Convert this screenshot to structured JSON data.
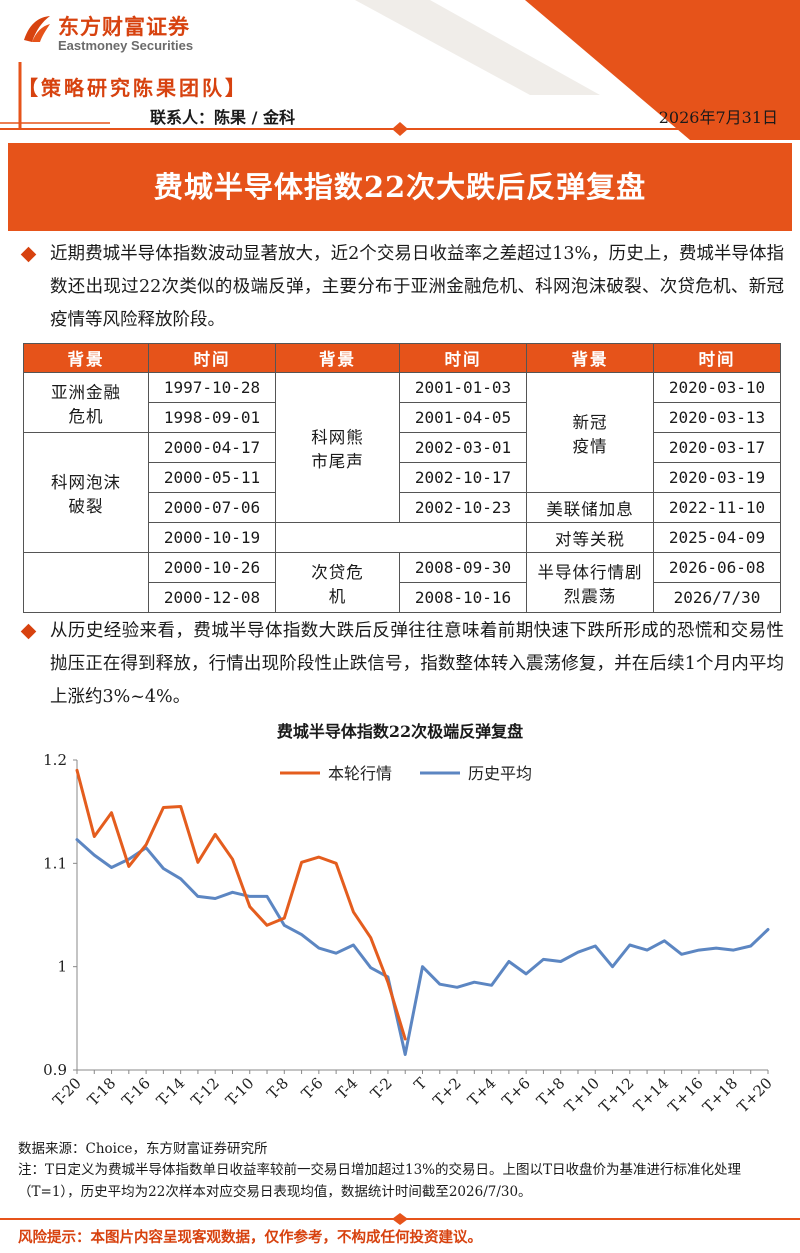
{
  "header": {
    "logo_cn": "东方财富证券",
    "logo_en": "Eastmoney Securities",
    "team": "【策略研究陈果团队】",
    "contact": "联系人：陈果 / 金科",
    "date": "2026年7月31日"
  },
  "title": "费城半导体指数22次大跌后反弹复盘",
  "para1": "近期费城半导体指数波动显著放大，近2个交易日收益率之差超过13%，历史上，费城半导体指数还出现过22次类似的极端反弹，主要分布于亚洲金融危机、科网泡沫破裂、次贷危机、新冠疫情等风险释放阶段。",
  "para2": "从历史经验来看，费城半导体指数大跌后反弹往往意味着前期快速下跌所形成的恐慌和交易性抛压正在得到释放，行情出现阶段性止跌信号，指数整体转入震荡修复，并在后续1个月内平均上涨约3%~4%。",
  "table": {
    "headers": [
      "背景",
      "时间",
      "背景",
      "时间",
      "背景",
      "时间"
    ],
    "groups": {
      "g1": "亚洲金融危机",
      "g2": "科网泡沫破裂",
      "g3": "科网熊市尾声",
      "g4": "次贷危机",
      "g5": "新冠疫情",
      "g6": "美联储加息",
      "g7": "对等关税",
      "g8": "半导体行情剧烈震荡"
    },
    "col2": [
      "1997-10-28",
      "1998-09-01",
      "2000-04-17",
      "2000-05-11",
      "2000-07-06",
      "2000-10-19",
      "2000-10-26",
      "2000-12-08"
    ],
    "col4": [
      "2001-01-03",
      "2001-04-05",
      "2002-03-01",
      "2002-10-17",
      "2002-10-23",
      "2008-09-30",
      "2008-10-16"
    ],
    "col6": [
      "2020-03-10",
      "2020-03-13",
      "2020-03-17",
      "2020-03-19",
      "2022-11-10",
      "2025-04-09",
      "2026-06-08",
      "2026/7/30"
    ]
  },
  "chart_title": "费城半导体指数22次极端反弹复盘",
  "chart_data": {
    "type": "line",
    "x": [
      "T-20",
      "T-19",
      "T-18",
      "T-17",
      "T-16",
      "T-15",
      "T-14",
      "T-13",
      "T-12",
      "T-11",
      "T-10",
      "T-9",
      "T-8",
      "T-7",
      "T-6",
      "T-5",
      "T-4",
      "T-3",
      "T-2",
      "T-1",
      "T",
      "T+1",
      "T+2",
      "T+3",
      "T+4",
      "T+5",
      "T+6",
      "T+7",
      "T+8",
      "T+9",
      "T+10",
      "T+11",
      "T+12",
      "T+13",
      "T+14",
      "T+15",
      "T+16",
      "T+17",
      "T+18",
      "T+19",
      "T+20"
    ],
    "tick_labels": [
      "T-20",
      "T-18",
      "T-16",
      "T-14",
      "T-12",
      "T-10",
      "T-8",
      "T-6",
      "T-4",
      "T-2",
      "T",
      "T+2",
      "T+4",
      "T+6",
      "T+8",
      "T+10",
      "T+12",
      "T+14",
      "T+16",
      "T+18",
      "T+20"
    ],
    "series": [
      {
        "name": "本轮行情",
        "color": "#e45d1e",
        "values": [
          1.19,
          1.126,
          1.149,
          1.097,
          1.118,
          1.154,
          1.155,
          1.101,
          1.128,
          1.104,
          1.058,
          1.04,
          1.047,
          1.101,
          1.106,
          1.1,
          1.053,
          1.028,
          0.985,
          0.93,
          null,
          null,
          null,
          null,
          null,
          null,
          null,
          null,
          null,
          null,
          null,
          null,
          null,
          null,
          null,
          null,
          null,
          null,
          null,
          null,
          null
        ]
      },
      {
        "name": "历史平均",
        "color": "#5c86c2",
        "values": [
          1.123,
          1.108,
          1.096,
          1.104,
          1.115,
          1.095,
          1.085,
          1.068,
          1.066,
          1.072,
          1.068,
          1.068,
          1.04,
          1.031,
          1.018,
          1.013,
          1.021,
          0.999,
          0.99,
          0.915,
          1.0,
          0.983,
          0.98,
          0.985,
          0.982,
          1.005,
          0.993,
          1.007,
          1.005,
          1.014,
          1.02,
          1.0,
          1.021,
          1.016,
          1.025,
          1.012,
          1.016,
          1.018,
          1.016,
          1.02,
          1.036
        ]
      }
    ],
    "y_ticks": [
      "0.9",
      "1",
      "1.1",
      "1.2"
    ],
    "ylim": [
      0.9,
      1.2
    ],
    "grid": false,
    "legend": "top-center"
  },
  "source": "数据来源：Choice，东方财富证券研究所",
  "note": "注：T日定义为费城半导体指数单日收益率较前一交易日增加超过13%的交易日。上图以T日收盘价为基准进行标准化处理（T=1），历史平均为22次样本对应交易日表现均值，数据统计时间截至2026/7/30。",
  "risk": "风险提示：本图片内容呈现客观数据，仅作参考，不构成任何投资建议。"
}
